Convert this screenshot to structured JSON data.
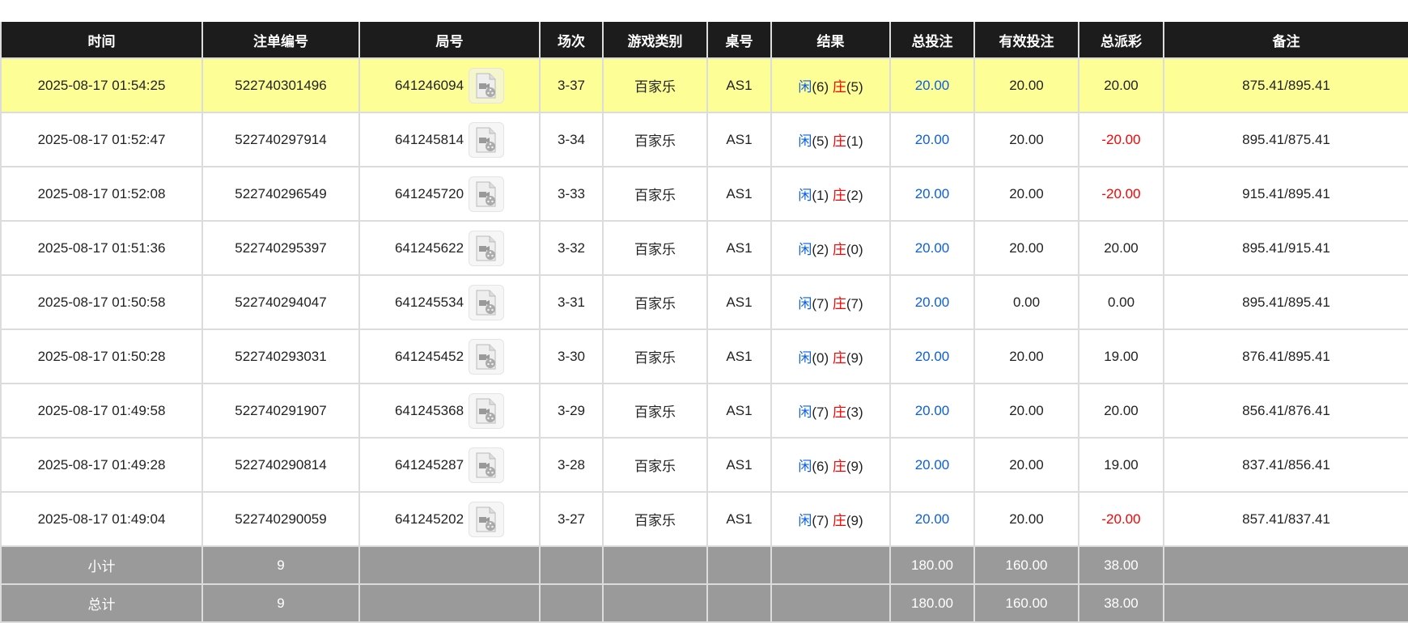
{
  "headers": [
    "时间",
    "注单编号",
    "局号",
    "场次",
    "游戏类别",
    "桌号",
    "结果",
    "总投注",
    "有效投注",
    "总派彩",
    "备注"
  ],
  "result_labels": {
    "player": "闲",
    "banker": "庄"
  },
  "colors": {
    "header_bg": "#1c1c1c",
    "highlight_row": "#fefe96",
    "summary_bg": "#9a9a9a",
    "bet_blue": "#0a5ee8",
    "loss_red": "#ff0000"
  },
  "rows": [
    {
      "time": "2025-08-17 01:54:25",
      "bet_id": "522740301496",
      "round_id": "641246094",
      "shoe": "3-37",
      "game": "百家乐",
      "table": "AS1",
      "player": "(6)",
      "banker": "(5)",
      "total_bet": "20.00",
      "valid_bet": "20.00",
      "payout": "20.00",
      "payout_negative": false,
      "note": "875.41/895.41",
      "highlighted": true
    },
    {
      "time": "2025-08-17 01:52:47",
      "bet_id": "522740297914",
      "round_id": "641245814",
      "shoe": "3-34",
      "game": "百家乐",
      "table": "AS1",
      "player": "(5)",
      "banker": "(1)",
      "total_bet": "20.00",
      "valid_bet": "20.00",
      "payout": "-20.00",
      "payout_negative": true,
      "note": "895.41/875.41"
    },
    {
      "time": "2025-08-17 01:52:08",
      "bet_id": "522740296549",
      "round_id": "641245720",
      "shoe": "3-33",
      "game": "百家乐",
      "table": "AS1",
      "player": "(1)",
      "banker": "(2)",
      "total_bet": "20.00",
      "valid_bet": "20.00",
      "payout": "-20.00",
      "payout_negative": true,
      "note": "915.41/895.41"
    },
    {
      "time": "2025-08-17 01:51:36",
      "bet_id": "522740295397",
      "round_id": "641245622",
      "shoe": "3-32",
      "game": "百家乐",
      "table": "AS1",
      "player": "(2)",
      "banker": "(0)",
      "total_bet": "20.00",
      "valid_bet": "20.00",
      "payout": "20.00",
      "payout_negative": false,
      "note": "895.41/915.41"
    },
    {
      "time": "2025-08-17 01:50:58",
      "bet_id": "522740294047",
      "round_id": "641245534",
      "shoe": "3-31",
      "game": "百家乐",
      "table": "AS1",
      "player": "(7)",
      "banker": "(7)",
      "total_bet": "20.00",
      "valid_bet": "0.00",
      "payout": "0.00",
      "payout_negative": false,
      "note": "895.41/895.41"
    },
    {
      "time": "2025-08-17 01:50:28",
      "bet_id": "522740293031",
      "round_id": "641245452",
      "shoe": "3-30",
      "game": "百家乐",
      "table": "AS1",
      "player": "(0)",
      "banker": "(9)",
      "total_bet": "20.00",
      "valid_bet": "20.00",
      "payout": "19.00",
      "payout_negative": false,
      "note": "876.41/895.41"
    },
    {
      "time": "2025-08-17 01:49:58",
      "bet_id": "522740291907",
      "round_id": "641245368",
      "shoe": "3-29",
      "game": "百家乐",
      "table": "AS1",
      "player": "(7)",
      "banker": "(3)",
      "total_bet": "20.00",
      "valid_bet": "20.00",
      "payout": "20.00",
      "payout_negative": false,
      "note": "856.41/876.41"
    },
    {
      "time": "2025-08-17 01:49:28",
      "bet_id": "522740290814",
      "round_id": "641245287",
      "shoe": "3-28",
      "game": "百家乐",
      "table": "AS1",
      "player": "(6)",
      "banker": "(9)",
      "total_bet": "20.00",
      "valid_bet": "20.00",
      "payout": "19.00",
      "payout_negative": false,
      "note": "837.41/856.41"
    },
    {
      "time": "2025-08-17 01:49:04",
      "bet_id": "522740290059",
      "round_id": "641245202",
      "shoe": "3-27",
      "game": "百家乐",
      "table": "AS1",
      "player": "(7)",
      "banker": "(9)",
      "total_bet": "20.00",
      "valid_bet": "20.00",
      "payout": "-20.00",
      "payout_negative": true,
      "note": "857.41/837.41"
    }
  ],
  "summary": [
    {
      "label": "小计",
      "count": "9",
      "total_bet": "180.00",
      "valid_bet": "160.00",
      "payout": "38.00"
    },
    {
      "label": "总计",
      "count": "9",
      "total_bet": "180.00",
      "valid_bet": "160.00",
      "payout": "38.00"
    }
  ]
}
